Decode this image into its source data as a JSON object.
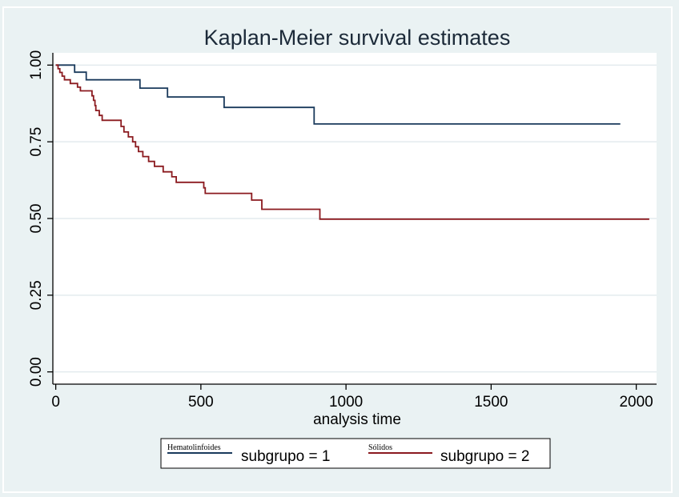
{
  "chart_data": {
    "type": "line",
    "title": "Kaplan-Meier survival estimates",
    "xlabel": "analysis time",
    "ylabel": "",
    "xlim": [
      -10,
      2070
    ],
    "ylim": [
      -0.04,
      1.04
    ],
    "xticks": [
      0,
      500,
      1000,
      1500,
      2000
    ],
    "xtick_labels": [
      "0",
      "500",
      "1000",
      "1500",
      "2000"
    ],
    "yticks": [
      0,
      0.25,
      0.5,
      0.75,
      1
    ],
    "ytick_labels": [
      "0.00",
      "0.25",
      "0.50",
      "0.75",
      "1.00"
    ],
    "grid": "horizontal",
    "legend_position": "bottom",
    "colors": {
      "page_background": "#eaf2f3",
      "plot_background": "#ffffff",
      "grid": "#e3ebee",
      "axis": "#000000"
    },
    "series": [
      {
        "name": "subgrupo = 1",
        "legend_annotation": "Hematolinfoides",
        "color": "#1a3a5c",
        "steps": [
          [
            0,
            1.0
          ],
          [
            65,
            0.977
          ],
          [
            105,
            0.952
          ],
          [
            290,
            0.925
          ],
          [
            385,
            0.896
          ],
          [
            580,
            0.862
          ],
          [
            890,
            0.808
          ],
          [
            1945,
            0.808
          ]
        ]
      },
      {
        "name": "subgrupo = 2",
        "legend_annotation": "Sólidos",
        "color": "#8b1a1f",
        "steps": [
          [
            0,
            1.0
          ],
          [
            8,
            0.988
          ],
          [
            14,
            0.976
          ],
          [
            22,
            0.964
          ],
          [
            30,
            0.952
          ],
          [
            50,
            0.94
          ],
          [
            75,
            0.928
          ],
          [
            85,
            0.916
          ],
          [
            125,
            0.9
          ],
          [
            130,
            0.885
          ],
          [
            135,
            0.868
          ],
          [
            138,
            0.852
          ],
          [
            150,
            0.836
          ],
          [
            160,
            0.82
          ],
          [
            225,
            0.8
          ],
          [
            235,
            0.782
          ],
          [
            250,
            0.766
          ],
          [
            265,
            0.75
          ],
          [
            275,
            0.734
          ],
          [
            285,
            0.718
          ],
          [
            300,
            0.702
          ],
          [
            320,
            0.686
          ],
          [
            340,
            0.67
          ],
          [
            370,
            0.652
          ],
          [
            400,
            0.636
          ],
          [
            415,
            0.618
          ],
          [
            510,
            0.6
          ],
          [
            515,
            0.582
          ],
          [
            675,
            0.56
          ],
          [
            710,
            0.53
          ],
          [
            910,
            0.498
          ],
          [
            2045,
            0.498
          ]
        ]
      }
    ]
  }
}
